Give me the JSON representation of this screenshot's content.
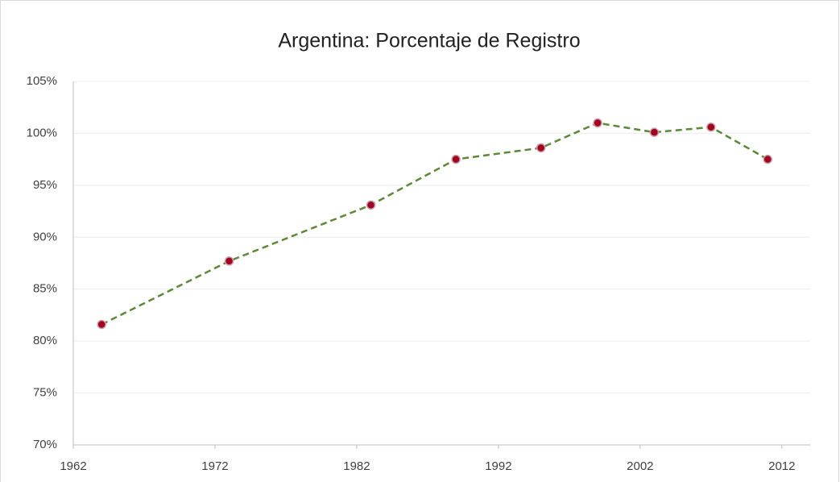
{
  "chart_data": {
    "type": "line",
    "title": "Argentina: Porcentaje de Registro",
    "x": [
      1964,
      1973,
      1983,
      1989,
      1995,
      1999,
      2003,
      2007,
      2011
    ],
    "series": [
      {
        "name": "Argentina",
        "color": "#5a8a35",
        "marker_color": "#a50021",
        "values": [
          81.6,
          87.7,
          93.1,
          97.5,
          98.6,
          101.0,
          100.1,
          100.6,
          97.5
        ]
      }
    ],
    "xlim": [
      1962,
      2014
    ],
    "xticks": [
      1962,
      1972,
      1982,
      1992,
      2002,
      2012
    ],
    "ylim": [
      70,
      105
    ],
    "yticks": [
      {
        "value": 70,
        "label": "70%"
      },
      {
        "value": 75,
        "label": "75%"
      },
      {
        "value": 80,
        "label": "80%"
      },
      {
        "value": 85,
        "label": "85%"
      },
      {
        "value": 90,
        "label": "90%"
      },
      {
        "value": 95,
        "label": "95%"
      },
      {
        "value": 100,
        "label": "100%"
      },
      {
        "value": 105,
        "label": "105%"
      }
    ],
    "grid": true
  }
}
